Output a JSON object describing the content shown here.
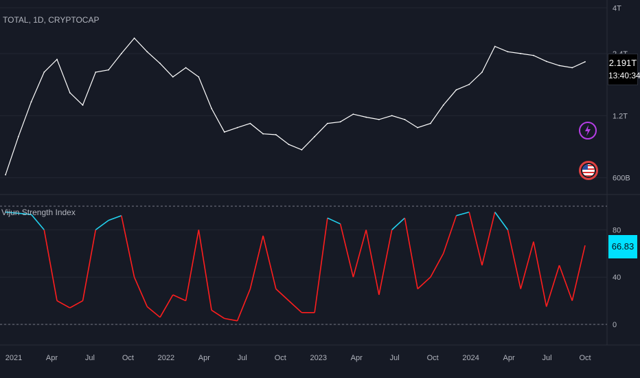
{
  "symbol": "TOTAL, 1D, CRYPTOCAP",
  "price_label": "2.191T",
  "countdown": "13:40:34",
  "indicator_title": "Vijun Strength Index",
  "indicator_value": "66.83",
  "icons": [
    "flash-icon",
    "us-flag-icon"
  ],
  "colors": {
    "background": "#161a25",
    "price_line": "#ffffff",
    "osc_high": "#22d3f0",
    "osc_low": "#ff1e1e",
    "grid": "#232733"
  },
  "chart_data": [
    {
      "type": "line",
      "title": "TOTAL, 1D, CRYPTOCAP",
      "scale": "log",
      "y_ticks": [
        "600B",
        "1.2T",
        "2.4T",
        "4T"
      ],
      "x_ticks": [
        "2021",
        "Apr",
        "Jul",
        "Oct",
        "2022",
        "Apr",
        "Jul",
        "Oct",
        "2023",
        "Apr",
        "Jul",
        "Oct",
        "2024",
        "Apr",
        "Jul",
        "Oct"
      ],
      "series": [
        {
          "x": [
            "2021-01",
            "2021-02",
            "2021-03",
            "2021-04",
            "2021-05",
            "2021-06",
            "2021-07",
            "2021-08",
            "2021-09",
            "2021-10",
            "2021-11",
            "2021-12",
            "2022-01",
            "2022-02",
            "2022-03",
            "2022-04",
            "2022-05",
            "2022-06",
            "2022-07",
            "2022-08",
            "2022-09",
            "2022-10",
            "2022-11",
            "2022-12",
            "2023-01",
            "2023-02",
            "2023-03",
            "2023-04",
            "2023-05",
            "2023-06",
            "2023-07",
            "2023-08",
            "2023-09",
            "2023-10",
            "2023-11",
            "2023-12",
            "2024-01",
            "2024-02",
            "2024-03",
            "2024-04",
            "2024-05",
            "2024-06",
            "2024-07",
            "2024-08",
            "2024-09",
            "2024-10"
          ],
          "y": [
            0.62,
            0.95,
            1.4,
            1.95,
            2.25,
            1.55,
            1.35,
            1.95,
            2.0,
            2.4,
            2.85,
            2.45,
            2.15,
            1.85,
            2.05,
            1.85,
            1.3,
            1.0,
            1.05,
            1.1,
            0.98,
            0.97,
            0.87,
            0.82,
            0.95,
            1.1,
            1.12,
            1.22,
            1.18,
            1.15,
            1.2,
            1.15,
            1.05,
            1.1,
            1.35,
            1.6,
            1.7,
            1.95,
            2.6,
            2.45,
            2.4,
            2.35,
            2.2,
            2.1,
            2.05,
            2.19
          ]
        }
      ]
    },
    {
      "type": "line",
      "title": "Vijun Strength Index",
      "y_ticks": [
        0,
        40,
        80
      ],
      "ylim": [
        0,
        100
      ],
      "threshold_lines": [
        0,
        100
      ],
      "last_value": 66.83,
      "series": [
        {
          "x": [
            "2021-01",
            "2021-02",
            "2021-03",
            "2021-04",
            "2021-05",
            "2021-06",
            "2021-07",
            "2021-08",
            "2021-09",
            "2021-10",
            "2021-11",
            "2021-12",
            "2022-01",
            "2022-02",
            "2022-03",
            "2022-04",
            "2022-05",
            "2022-06",
            "2022-07",
            "2022-08",
            "2022-09",
            "2022-10",
            "2022-11",
            "2022-12",
            "2023-01",
            "2023-02",
            "2023-03",
            "2023-04",
            "2023-05",
            "2023-06",
            "2023-07",
            "2023-08",
            "2023-09",
            "2023-10",
            "2023-11",
            "2023-12",
            "2024-01",
            "2024-02",
            "2024-03",
            "2024-04",
            "2024-05",
            "2024-06",
            "2024-07",
            "2024-08",
            "2024-09",
            "2024-10"
          ],
          "y": [
            95,
            94,
            93,
            80,
            20,
            14,
            20,
            80,
            88,
            92,
            40,
            15,
            6,
            25,
            20,
            80,
            12,
            5,
            3,
            30,
            75,
            30,
            20,
            10,
            10,
            90,
            85,
            40,
            80,
            25,
            80,
            90,
            30,
            40,
            60,
            92,
            95,
            50,
            95,
            80,
            30,
            70,
            15,
            50,
            20,
            66.83
          ]
        }
      ]
    }
  ]
}
